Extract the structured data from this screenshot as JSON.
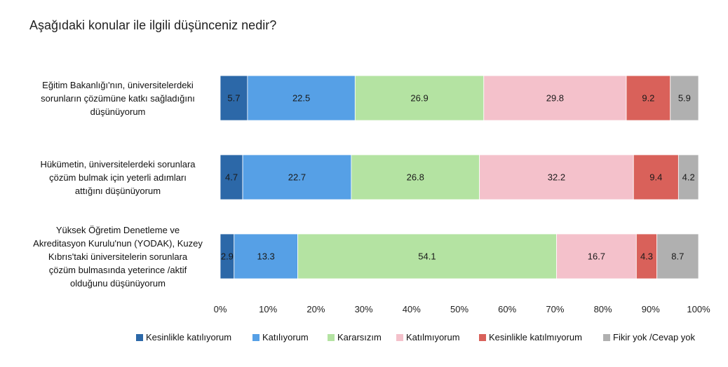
{
  "chart_data": {
    "type": "bar",
    "orientation": "horizontal",
    "stacked": true,
    "percent_stacked": true,
    "title": "Aşağıdaki konular ile ilgili düşünceniz nedir?",
    "categories": [
      [
        "Eğitim Bakanlığı'nın, üniversitelerdeki",
        "sorunların çözümüne katkı sağladığını",
        "düşünüyorum"
      ],
      [
        "Hükümetin, üniversitelerdeki sorunlara",
        "çözüm bulmak için yeterli adımları",
        "attığını düşünüyorum"
      ],
      [
        "Yüksek Öğretim Denetleme ve",
        "Akreditasyon Kurulu'nun (YODAK), Kuzey",
        "Kıbrıs'taki üniversitelerin sorunlara",
        "çözüm bulmasında yeterince /aktif",
        "olduğunu düşünüyorum"
      ]
    ],
    "series": [
      {
        "name": "Kesinlikle katılıyorum",
        "color": "#2c68a8",
        "values": [
          5.7,
          4.7,
          2.9
        ],
        "labels": [
          "5.7",
          "4.7",
          "2.9"
        ]
      },
      {
        "name": "Katılıyorum",
        "color": "#56a0e6",
        "values": [
          22.5,
          22.7,
          13.3
        ],
        "labels": [
          "22.5",
          "22.7",
          "13.3"
        ]
      },
      {
        "name": "Kararsızım",
        "color": "#b4e3a2",
        "values": [
          26.9,
          26.8,
          54.1
        ],
        "labels": [
          "26.9",
          "26.8",
          "54.1"
        ]
      },
      {
        "name": "Katılmıyorum",
        "color": "#f4c1cb",
        "values": [
          29.8,
          32.2,
          16.7
        ],
        "labels": [
          "29.8",
          "32.2",
          "16.7"
        ]
      },
      {
        "name": "Kesinlikle katılmıyorum",
        "color": "#d9615a",
        "values": [
          9.2,
          9.4,
          4.3
        ],
        "labels": [
          "9.2",
          "9.4",
          "4.3"
        ]
      },
      {
        "name": "Fikir yok /Cevap yok",
        "color": "#b0b0b0",
        "values": [
          5.9,
          4.2,
          8.7
        ],
        "labels": [
          "5.9",
          "4.2",
          "8.7"
        ]
      }
    ],
    "xlim": [
      0,
      100
    ],
    "xticks": [
      "0%",
      "10%",
      "20%",
      "30%",
      "40%",
      "50%",
      "60%",
      "70%",
      "80%",
      "90%",
      "100%"
    ],
    "grid": false,
    "legend_position": "bottom"
  }
}
